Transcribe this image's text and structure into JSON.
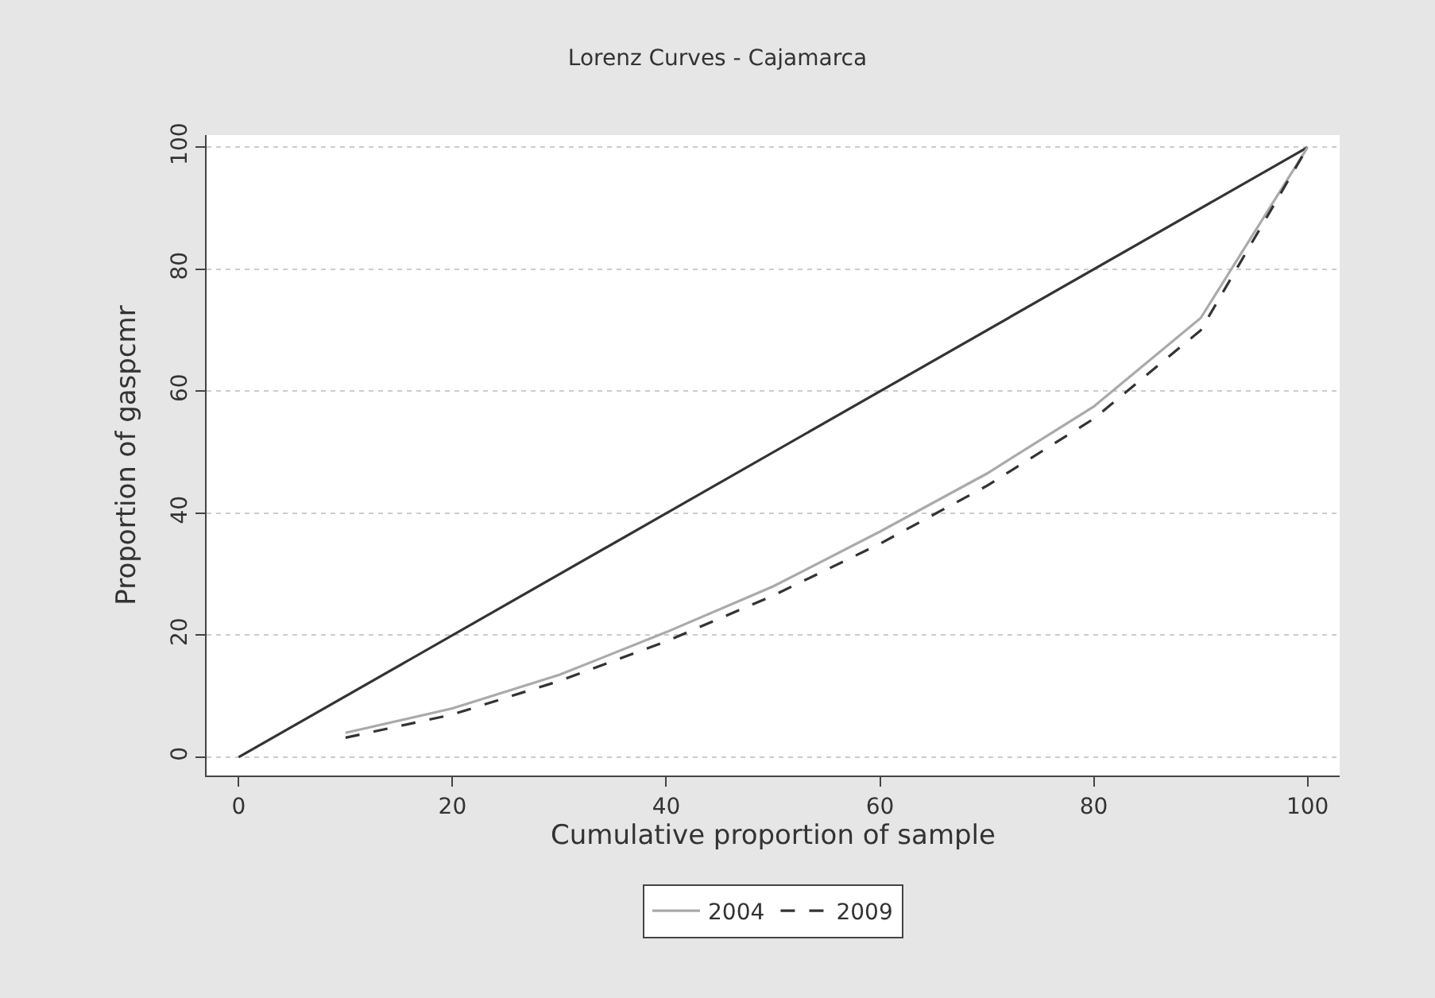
{
  "chart_data": {
    "type": "line",
    "title": "Lorenz Curves - Cajamarca",
    "xlabel": "Cumulative proportion of sample",
    "ylabel": "Proportion of gaspcmr",
    "xlim": [
      -3,
      103
    ],
    "ylim": [
      -3,
      102
    ],
    "xticks": [
      0,
      20,
      40,
      60,
      80,
      100
    ],
    "yticks": [
      0,
      20,
      40,
      60,
      80,
      100
    ],
    "grid": "y",
    "legend": "bottom",
    "series": [
      {
        "color": "#333333",
        "x": [
          0,
          100
        ],
        "values": [
          0,
          100
        ],
        "line_style": "solid"
      },
      {
        "name": "2004",
        "color": "#aaaaaa",
        "x": [
          10,
          20,
          30,
          40,
          50,
          60,
          70,
          80,
          90,
          100
        ],
        "values": [
          4,
          8,
          13.5,
          20.5,
          28,
          37,
          46.5,
          57.5,
          72,
          100
        ],
        "line_style": "solid"
      },
      {
        "name": "2009",
        "color": "#333333",
        "x": [
          10,
          20,
          30,
          40,
          50,
          60,
          70,
          80,
          90,
          100
        ],
        "values": [
          3.2,
          7,
          12.5,
          19,
          26.5,
          35,
          44.5,
          55.5,
          70,
          100
        ],
        "line_style": "dashed"
      }
    ]
  }
}
